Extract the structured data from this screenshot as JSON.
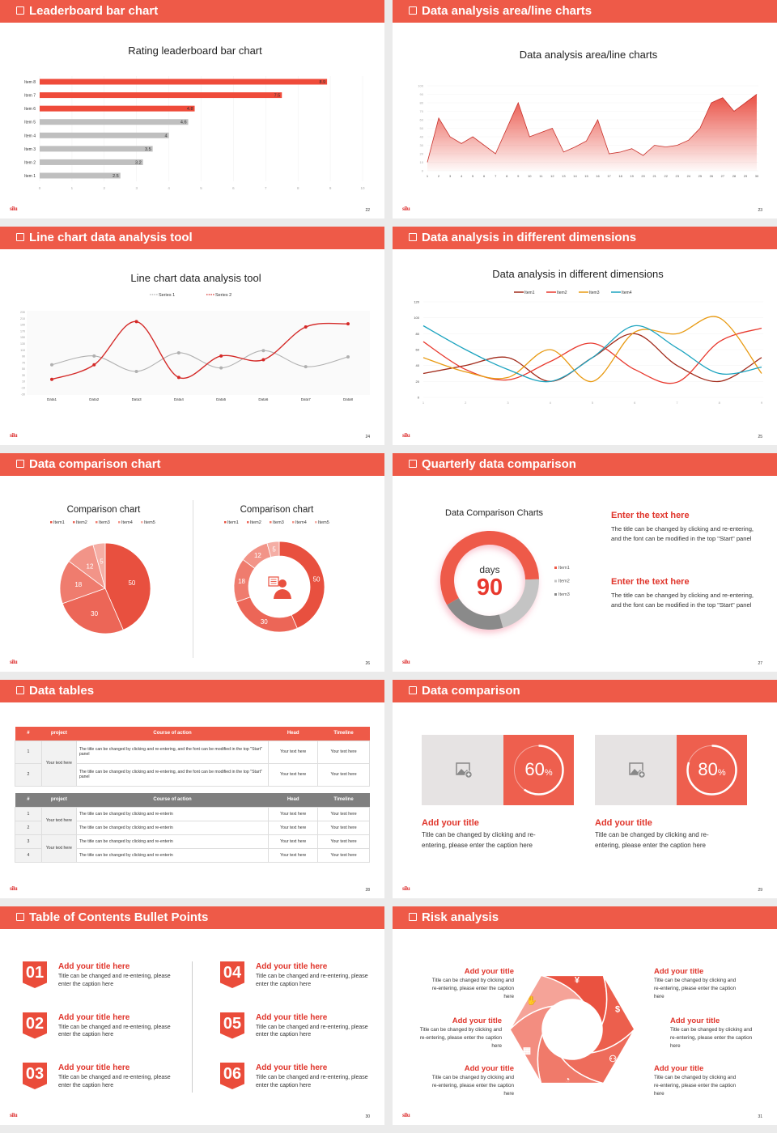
{
  "logo": "silu",
  "slides": [
    {
      "header": "Leaderboard bar chart",
      "page": "22"
    },
    {
      "header": "Data analysis area/line charts",
      "page": "23"
    },
    {
      "header": "Line chart data analysis tool",
      "page": "24"
    },
    {
      "header": "Data analysis in different dimensions",
      "page": "25"
    },
    {
      "header": "Data comparison chart",
      "page": "26"
    },
    {
      "header": "Quarterly data comparison",
      "page": "27",
      "blocks": [
        {
          "title": "Enter the text here",
          "text": "The title can be changed by clicking and re-entering, and the font can be modified in the top \"Start\" panel"
        },
        {
          "title": "Enter the text here",
          "text": "The title can be changed by clicking and re-entering, and the font can be modified in the top \"Start\" panel"
        }
      ]
    },
    {
      "header": "Data tables",
      "page": "28",
      "table1": {
        "columns": [
          "#",
          "project",
          "Course of action",
          "Head",
          "Timeline"
        ],
        "project": "Your text here",
        "rows": [
          {
            "n": "1",
            "action": "The title can be changed by clicking and re-entering, and the font can be modified in the top \"Start\" panel",
            "head": "Your text here",
            "timeline": "Your text here"
          },
          {
            "n": "2",
            "action": "The title can be changed by clicking and re-entering, and the font can be modified in the top \"Start\" panel",
            "head": "Your text here",
            "timeline": "Your text here"
          }
        ]
      },
      "table2": {
        "columns": [
          "#",
          "project",
          "Course of action",
          "Head",
          "Timeline"
        ],
        "projects": [
          "Your text here",
          "Your text here"
        ],
        "rows": [
          {
            "n": "1",
            "action": "The title can be changed by clicking and re-enterin",
            "head": "Your text here",
            "timeline": "Your text here"
          },
          {
            "n": "2",
            "action": "The title can be changed by clicking and re-enterin",
            "head": "Your text here",
            "timeline": "Your text here"
          },
          {
            "n": "3",
            "action": "The title can be changed by clicking and re-enterin",
            "head": "Your text here",
            "timeline": "Your text here"
          },
          {
            "n": "4",
            "action": "The title can be changed by clicking and re-enterin",
            "head": "Your text here",
            "timeline": "Your text here"
          }
        ]
      }
    },
    {
      "header": "Data comparison",
      "page": "29",
      "cards": [
        {
          "percent": 60,
          "value": "60",
          "unit": "%",
          "title": "Add your title",
          "text": "Title can be changed by clicking and re-entering, please enter the caption here",
          "icon": "image-add-icon"
        },
        {
          "percent": 80,
          "value": "80",
          "unit": "%",
          "title": "Add your title",
          "text": "Title can be changed by clicking and re-entering, please enter the caption here",
          "icon": "image-add-icon"
        }
      ]
    },
    {
      "header": "Table of Contents Bullet Points",
      "page": "30",
      "items": [
        {
          "num": "01",
          "title": "Add your title here",
          "text": "Title can be changed and re-entering, please enter the caption here"
        },
        {
          "num": "02",
          "title": "Add your title here",
          "text": "Title can be changed and re-entering, please enter the caption here"
        },
        {
          "num": "03",
          "title": "Add your title here",
          "text": "Title can be changed and re-entering, please enter the caption here"
        },
        {
          "num": "04",
          "title": "Add your title here",
          "text": "Title can be changed and re-entering, please enter the caption here"
        },
        {
          "num": "05",
          "title": "Add your title here",
          "text": "Title can be changed and re-entering, please enter the caption here"
        },
        {
          "num": "06",
          "title": "Add your title here",
          "text": "Title can be changed and re-entering, please enter the caption here"
        }
      ]
    },
    {
      "header": "Risk analysis",
      "page": "31",
      "items": [
        {
          "title": "Add your title",
          "text": "Title can be changed by clicking and re-entering, please enter the caption here"
        },
        {
          "title": "Add your title",
          "text": "Title can be changed by clicking and re-entering, please enter the caption here"
        },
        {
          "title": "Add your title",
          "text": "Title can be changed by clicking and re-entering, please enter the caption here"
        },
        {
          "title": "Add your title",
          "text": "Title can be changed by clicking and re-entering, please enter the caption here"
        },
        {
          "title": "Add your title",
          "text": "Title can be changed by clicking and re-entering, please enter the caption here"
        },
        {
          "title": "Add your title",
          "text": "Title can be changed by clicking and re-entering, please enter the caption here"
        }
      ],
      "icons": [
        "money-bag-icon",
        "coins-icon",
        "users-icon",
        "pie-chart-icon",
        "buildings-icon",
        "hand-money-icon"
      ]
    }
  ],
  "colors": {
    "accent": "#ee5a48",
    "title_red": "#e0352b"
  },
  "chart_data": [
    {
      "type": "bar",
      "orientation": "horizontal",
      "title": "Rating leaderboard bar chart",
      "categories": [
        "Item 1",
        "Item 2",
        "Item 3",
        "Item 4",
        "Item 5",
        "Item 6",
        "Item 7",
        "Item 8"
      ],
      "values": [
        2.5,
        3.2,
        3.5,
        4,
        4.6,
        4.8,
        7.5,
        8.9
      ],
      "value_labels": [
        "2.5",
        "3.2",
        "3.5",
        "4",
        "4.6",
        "4.8",
        "7.5",
        "8.9"
      ],
      "bar_colors": [
        "#bfbfbf",
        "#bfbfbf",
        "#bfbfbf",
        "#bfbfbf",
        "#bfbfbf",
        "#ef4b3a",
        "#ef4b3a",
        "#ef4b3a"
      ],
      "xlim": [
        0,
        10
      ],
      "xticks": [
        "0",
        "1",
        "2",
        "3",
        "4",
        "5",
        "6",
        "7",
        "8",
        "9",
        "10"
      ],
      "grid": true
    },
    {
      "type": "area",
      "title": "Data analysis area/line charts",
      "x": [
        "1",
        "2",
        "3",
        "4",
        "5",
        "6",
        "7",
        "8",
        "9",
        "10",
        "11",
        "12",
        "13",
        "14",
        "15",
        "16",
        "17",
        "18",
        "19",
        "20",
        "21",
        "22",
        "23",
        "24",
        "25",
        "26",
        "27",
        "28",
        "29",
        "30"
      ],
      "values": [
        10,
        62,
        40,
        32,
        40,
        30,
        20,
        50,
        80,
        40,
        45,
        50,
        22,
        28,
        35,
        60,
        20,
        22,
        26,
        18,
        30,
        28,
        30,
        36,
        50,
        80,
        86,
        70,
        80,
        90
      ],
      "ylim": [
        0,
        100
      ],
      "yticks": [
        "0",
        "10",
        "20",
        "30",
        "40",
        "50",
        "60",
        "70",
        "80",
        "90",
        "100"
      ],
      "color": "#e8463a"
    },
    {
      "type": "line",
      "title": "Line chart data analysis tool",
      "categories": [
        "Data1",
        "Data2",
        "Data3",
        "Data4",
        "Data5",
        "Data6",
        "Data7",
        "Data8"
      ],
      "series": [
        {
          "name": "Series 1",
          "color": "#b0b0b0",
          "values": [
            63,
            91,
            42,
            101,
            53,
            108,
            57,
            88
          ]
        },
        {
          "name": "Series 2",
          "color": "#d42a28",
          "values": [
            17,
            63,
            200,
            23,
            91,
            79,
            183,
            193
          ]
        }
      ],
      "ylim": [
        -30,
        230
      ],
      "yticks": [
        "230",
        "210",
        "190",
        "170",
        "150",
        "130",
        "110",
        "90",
        "70",
        "50",
        "30",
        "10",
        "-10",
        "-30"
      ],
      "legend": "top"
    },
    {
      "type": "line",
      "title": "Data analysis in different dimensions",
      "categories": [
        "1",
        "2",
        "3",
        "4",
        "5",
        "6",
        "7",
        "8",
        "9"
      ],
      "series": [
        {
          "name": "Item1",
          "color": "#a12a1a",
          "values": [
            30,
            40,
            50,
            20,
            50,
            80,
            40,
            20,
            50
          ]
        },
        {
          "name": "Item2",
          "color": "#e8392e",
          "values": [
            70,
            35,
            22,
            45,
            68,
            35,
            19,
            70,
            87
          ]
        },
        {
          "name": "Item3",
          "color": "#e89a12",
          "values": [
            50,
            32,
            25,
            60,
            20,
            82,
            80,
            100,
            30
          ]
        },
        {
          "name": "Item4",
          "color": "#1ba3bf",
          "values": [
            90,
            60,
            35,
            20,
            50,
            90,
            62,
            30,
            38
          ]
        }
      ],
      "ylim": [
        0,
        120
      ],
      "yticks": [
        "0",
        "20",
        "40",
        "60",
        "80",
        "100",
        "120"
      ],
      "legend": "top"
    },
    {
      "type": "pie",
      "title": "Comparison chart",
      "labels": [
        "Item1",
        "Item2",
        "Item3",
        "Item4",
        "Item5"
      ],
      "values": [
        50,
        30,
        18,
        12,
        5
      ],
      "colors": [
        "#e8503f",
        "#ec6657",
        "#ef7c6e",
        "#f29488",
        "#f5aea5"
      ],
      "legend": "top"
    },
    {
      "type": "pie",
      "variant": "donut",
      "title": "Comparison chart",
      "labels": [
        "Item1",
        "Item2",
        "Item3",
        "Item4",
        "Item5"
      ],
      "values": [
        50,
        30,
        18,
        12,
        5
      ],
      "colors": [
        "#e8503f",
        "#ec6657",
        "#ef7c6e",
        "#f29488",
        "#f5aea5"
      ],
      "legend": "top",
      "center_icon": "customer-service-icon"
    },
    {
      "type": "pie",
      "variant": "donut",
      "title": "Data Comparison Charts",
      "labels": [
        "Item1",
        "Item2",
        "Item3"
      ],
      "values": [
        58,
        21,
        21
      ],
      "colors": [
        "#ee5a48",
        "#c4c4c4",
        "#8a8a8a"
      ],
      "legend": "right",
      "center_label": "days",
      "center_value": "90"
    }
  ]
}
